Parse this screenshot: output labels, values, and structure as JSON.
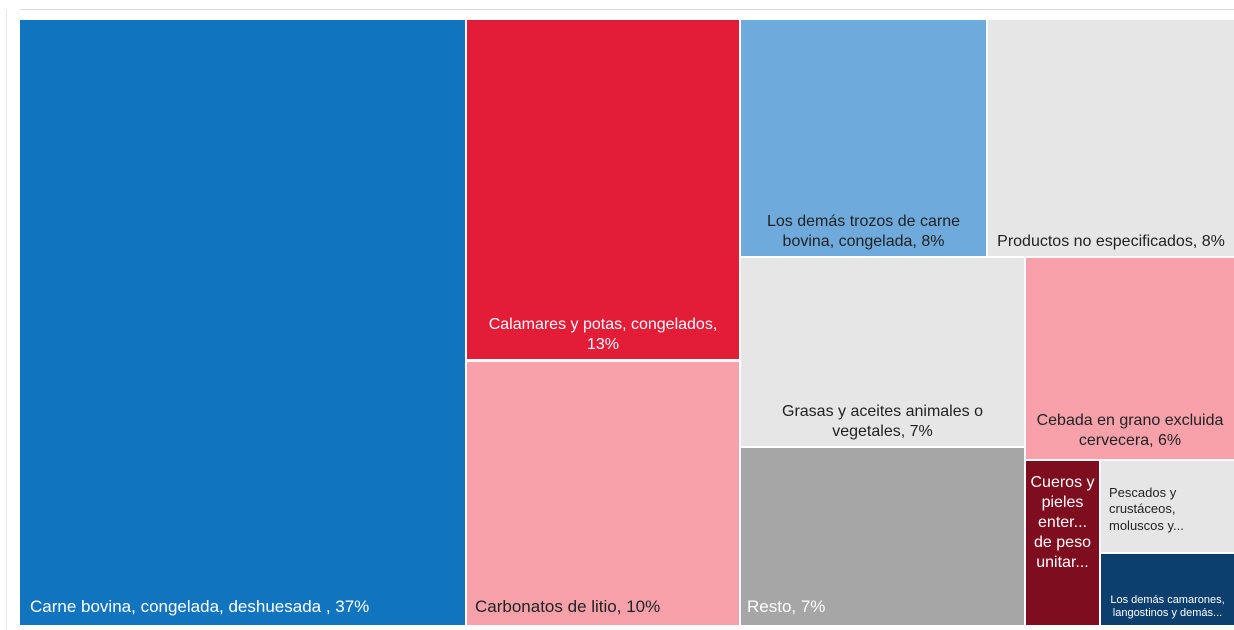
{
  "header_text": "···",
  "chart_data": {
    "type": "treemap",
    "items": [
      {
        "label": "Carne bovina, congelada, deshuesada , 37%",
        "value": 37,
        "color": "#1174bf",
        "text_color": "#ffffff"
      },
      {
        "label": "Calamares y potas, congelados, 13%",
        "value": 13,
        "color": "#e31c37",
        "text_color": "#ffffff"
      },
      {
        "label": "Carbonatos de litio, 10%",
        "value": 10,
        "color": "#f9a1ab",
        "text_color": "#222222"
      },
      {
        "label": "Los demás trozos de carne bovina, congelada, 8%",
        "value": 8,
        "color": "#6eaadb",
        "text_color": "#222222"
      },
      {
        "label": "Productos no especificados, 8%",
        "value": 8,
        "color": "#e6e6e6",
        "text_color": "#222222"
      },
      {
        "label": "Grasas y aceites animales o vegetales, 7%",
        "value": 7,
        "color": "#e6e6e6",
        "text_color": "#222222"
      },
      {
        "label": "Resto, 7%",
        "value": 7,
        "color": "#a6a6a6",
        "text_color": "#ffffff"
      },
      {
        "label": "Cebada en grano excluida cervecera, 6%",
        "value": 6,
        "color": "#f9a1ab",
        "text_color": "#222222"
      },
      {
        "label": "Cueros y pieles enter... de peso unitar...",
        "value": 1.3,
        "color": "#7e0d1f",
        "text_color": "#ffffff"
      },
      {
        "label": "Pescados y crustáceos, moluscos y...",
        "value": 1.3,
        "color": "#e6e6e6",
        "text_color": "#222222"
      },
      {
        "label": "Los demás camarones, langostinos y demás...",
        "value": 1.0,
        "color": "#0c3f6e",
        "text_color": "#ffffff"
      }
    ]
  }
}
